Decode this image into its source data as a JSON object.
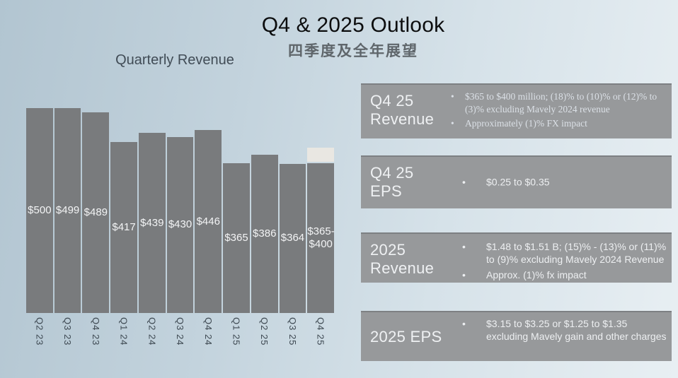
{
  "slide": {
    "title": "Q4 & 2025 Outlook",
    "subtitle_zh": "四季度及全年展望"
  },
  "chart_data": {
    "type": "bar",
    "title": "Quarterly Revenue",
    "categories": [
      "Q2 23",
      "Q3 23",
      "Q4 23",
      "Q1 24",
      "Q2 24",
      "Q3 24",
      "Q4 24",
      "Q1 25",
      "Q2 25",
      "Q3 25",
      "Q4 25"
    ],
    "values": [
      500,
      499,
      489,
      417,
      439,
      430,
      446,
      365,
      386,
      364,
      365
    ],
    "bar_labels": [
      "$500",
      "$499",
      "$489",
      "$417",
      "$439",
      "$430",
      "$446",
      "$365",
      "$386",
      "$364",
      "$365-\n$400"
    ],
    "forecast": {
      "index": 10,
      "low": 365,
      "high": 400,
      "label": "$365-$400"
    },
    "ylim": [
      0,
      505
    ],
    "xlabel": "",
    "ylabel": "",
    "grid": false,
    "legend": false,
    "bar_color": "#797b7d",
    "forecast_cap_color": "#e9e7e2"
  },
  "outlook_boxes": [
    {
      "id": "q4-25-revenue",
      "title": "Q4 25\nRevenue",
      "bullets": [
        "$365 to $400 million; (18)% to (10)% or (12)% to (3)% excluding Mavely 2024 revenue",
        "Approximately (1)% FX impact"
      ]
    },
    {
      "id": "q4-25-eps",
      "title": "Q4 25\nEPS",
      "bullets": [
        "$0.25 to $0.35"
      ]
    },
    {
      "id": "2025-revenue",
      "title": "2025\nRevenue",
      "bullets": [
        "$1.48 to $1.51 B; (15)% - (13)% or (11)% to (9)% excluding Mavely 2024 Revenue",
        "Approx. (1)% fx impact"
      ]
    },
    {
      "id": "2025-eps",
      "title": "2025 EPS",
      "bullets": [
        "$3.15 to $3.25 or $1.25 to $1.35 excluding Mavely gain and other charges"
      ]
    }
  ]
}
